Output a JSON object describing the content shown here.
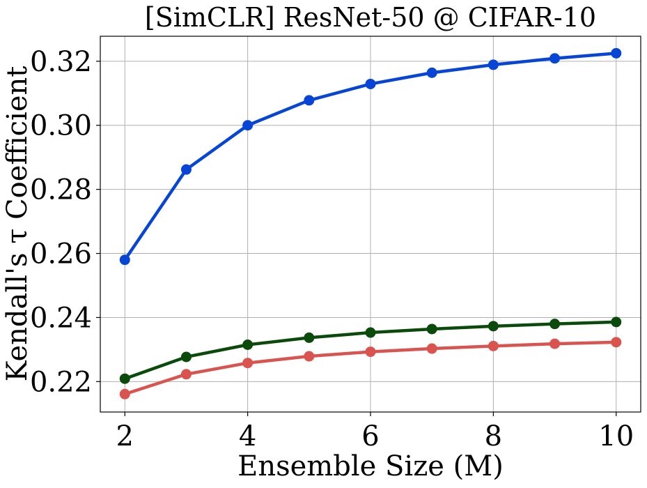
{
  "chart_data": {
    "type": "line",
    "title": "[SimCLR] ResNet-50 @ CIFAR-10",
    "xlabel": "Ensemble Size (M)",
    "ylabel": "Kendall's τ Coefficient",
    "x": [
      2,
      3,
      4,
      5,
      6,
      7,
      8,
      9,
      10
    ],
    "xlim": [
      1.6,
      10.4
    ],
    "ylim": [
      0.2105,
      0.3278
    ],
    "xticks": [
      2,
      4,
      6,
      8,
      10
    ],
    "xtick_labels": [
      "2",
      "4",
      "6",
      "8",
      "10"
    ],
    "yticks": [
      0.22,
      0.24,
      0.26,
      0.28,
      0.3,
      0.32
    ],
    "ytick_labels": [
      "0.22",
      "0.24",
      "0.26",
      "0.28",
      "0.30",
      "0.32"
    ],
    "grid": true,
    "legend": null,
    "series": [
      {
        "name": "blue",
        "color": "#0645d6",
        "values": [
          0.258,
          0.2862,
          0.3,
          0.3078,
          0.3129,
          0.3164,
          0.3189,
          0.3209,
          0.3225
        ]
      },
      {
        "name": "dark-green",
        "color": "#0a4a0a",
        "values": [
          0.2209,
          0.2277,
          0.2315,
          0.2337,
          0.2353,
          0.2364,
          0.2373,
          0.238,
          0.2386
        ]
      },
      {
        "name": "red",
        "color": "#d9534f",
        "values": [
          0.2161,
          0.2223,
          0.2258,
          0.2279,
          0.2293,
          0.2303,
          0.2311,
          0.2318,
          0.2323
        ]
      }
    ]
  }
}
